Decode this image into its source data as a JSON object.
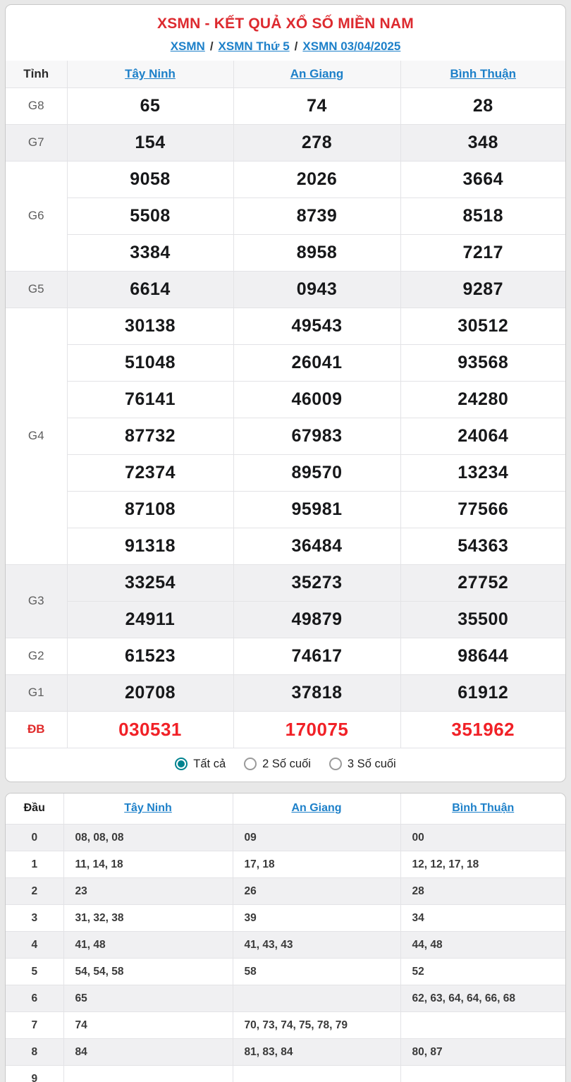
{
  "header": {
    "title": "XSMN - KẾT QUẢ XỔ SỐ MIỀN NAM",
    "breadcrumb": [
      "XSMN",
      "XSMN Thứ 5",
      "XSMN 03/04/2025"
    ],
    "separator": "/"
  },
  "colors": {
    "title_red": "#dd2a2f",
    "special_red": "#f12127",
    "link_blue": "#1d80c9",
    "radio_teal": "#00838f",
    "stripe_gray": "#f0f0f2"
  },
  "results_table": {
    "corner_label": "Tỉnh",
    "provinces": [
      "Tây Ninh",
      "An Giang",
      "Bình Thuận"
    ],
    "g8": {
      "label": "G8",
      "v": [
        [
          "65"
        ],
        [
          "74"
        ],
        [
          "28"
        ]
      ]
    },
    "g7": {
      "label": "G7",
      "v": [
        [
          "154"
        ],
        [
          "278"
        ],
        [
          "348"
        ]
      ]
    },
    "g6": {
      "label": "G6",
      "v": [
        [
          "9058",
          "5508",
          "3384"
        ],
        [
          "2026",
          "8739",
          "8958"
        ],
        [
          "3664",
          "8518",
          "7217"
        ]
      ]
    },
    "g5": {
      "label": "G5",
      "v": [
        [
          "6614"
        ],
        [
          "0943"
        ],
        [
          "9287"
        ]
      ]
    },
    "g4": {
      "label": "G4",
      "v": [
        [
          "30138",
          "51048",
          "76141",
          "87732",
          "72374",
          "87108",
          "91318"
        ],
        [
          "49543",
          "26041",
          "46009",
          "67983",
          "89570",
          "95981",
          "36484"
        ],
        [
          "30512",
          "93568",
          "24280",
          "24064",
          "13234",
          "77566",
          "54363"
        ]
      ]
    },
    "g3": {
      "label": "G3",
      "v": [
        [
          "33254",
          "24911"
        ],
        [
          "35273",
          "49879"
        ],
        [
          "27752",
          "35500"
        ]
      ]
    },
    "g2": {
      "label": "G2",
      "v": [
        [
          "61523"
        ],
        [
          "74617"
        ],
        [
          "98644"
        ]
      ]
    },
    "g1": {
      "label": "G1",
      "v": [
        [
          "20708"
        ],
        [
          "37818"
        ],
        [
          "61912"
        ]
      ]
    },
    "db": {
      "label": "ĐB",
      "v": [
        [
          "030531"
        ],
        [
          "170075"
        ],
        [
          "351962"
        ]
      ]
    }
  },
  "filter": {
    "options": [
      {
        "label": "Tất cả",
        "selected": true
      },
      {
        "label": "2 Số cuối",
        "selected": false
      },
      {
        "label": "3 Số cuối",
        "selected": false
      }
    ]
  },
  "tails_table": {
    "corner_label": "Đầu",
    "provinces": [
      "Tây Ninh",
      "An Giang",
      "Bình Thuận"
    ],
    "rows": [
      {
        "d": "0",
        "v": [
          "08, 08, 08",
          "09",
          "00"
        ]
      },
      {
        "d": "1",
        "v": [
          "11, 14, 18",
          "17, 18",
          "12, 12, 17, 18"
        ]
      },
      {
        "d": "2",
        "v": [
          "23",
          "26",
          "28"
        ]
      },
      {
        "d": "3",
        "v": [
          "31, 32, 38",
          "39",
          "34"
        ]
      },
      {
        "d": "4",
        "v": [
          "41, 48",
          "41, 43, 43",
          "44, 48"
        ]
      },
      {
        "d": "5",
        "v": [
          "54, 54, 58",
          "58",
          "52"
        ]
      },
      {
        "d": "6",
        "v": [
          "65",
          "",
          "62, 63, 64, 64, 66, 68"
        ]
      },
      {
        "d": "7",
        "v": [
          "74",
          "70, 73, 74, 75, 78, 79",
          ""
        ]
      },
      {
        "d": "8",
        "v": [
          "84",
          "81, 83, 84",
          "80, 87"
        ]
      },
      {
        "d": "9",
        "v": [
          "",
          "",
          ""
        ]
      }
    ]
  }
}
